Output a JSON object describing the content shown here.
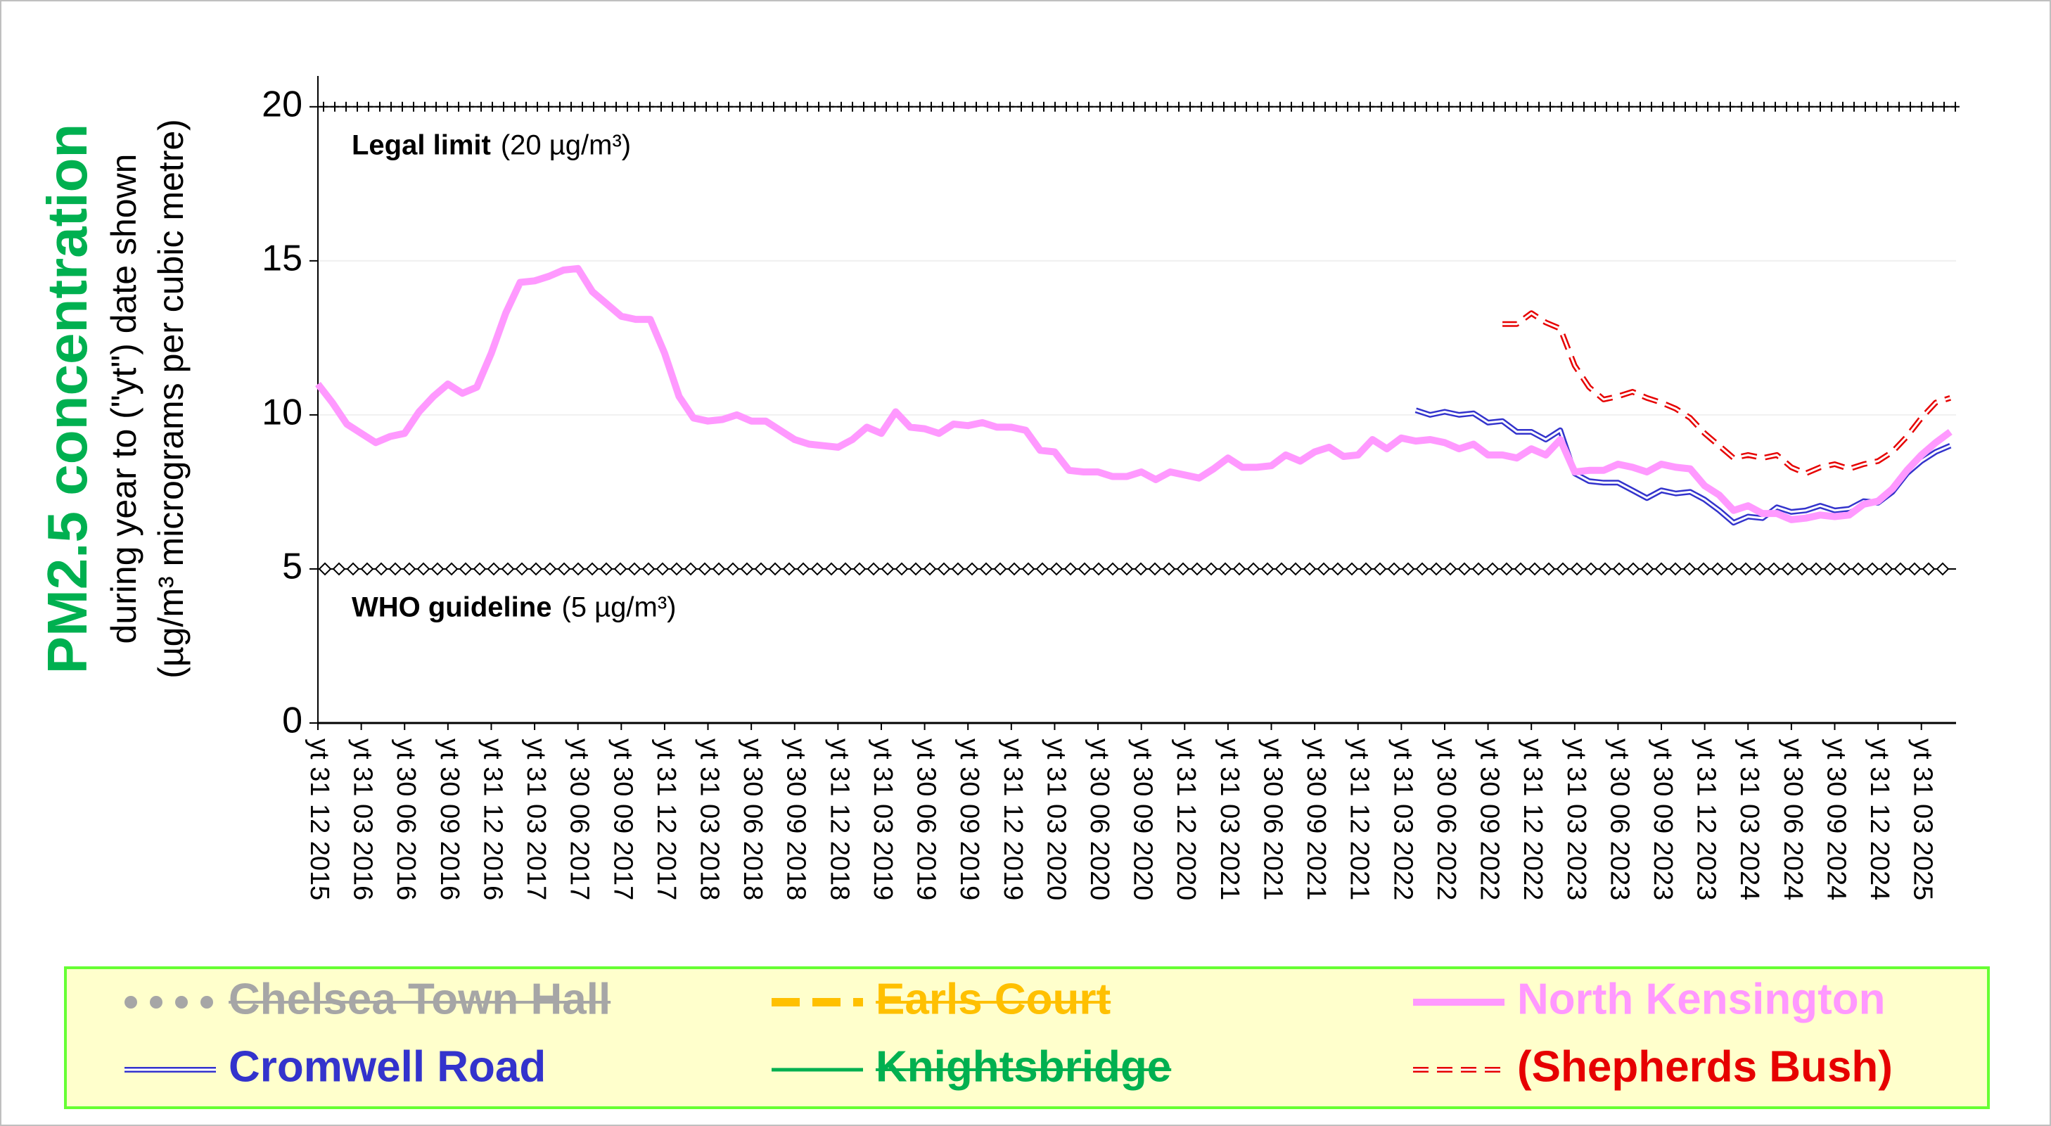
{
  "chart_data": {
    "type": "line",
    "title": "PM2.5 concentration",
    "subtitle": [
      "during year to (\"yt\") date shown",
      "(µg/m³ micrograms per cubic metre)"
    ],
    "categories": [
      "yt 31 12 2015",
      null,
      null,
      "yt 31 03 2016",
      null,
      null,
      "yt 30 06 2016",
      null,
      null,
      "yt 30 09 2016",
      null,
      null,
      "yt 31 12 2016",
      null,
      null,
      "yt 31 03 2017",
      null,
      null,
      "yt 30 06 2017",
      null,
      null,
      "yt 30 09 2017",
      null,
      null,
      "yt 31 12 2017",
      null,
      null,
      "yt 31 03 2018",
      null,
      null,
      "yt 30 06 2018",
      null,
      null,
      "yt 30 09 2018",
      null,
      null,
      "yt 31 12 2018",
      null,
      null,
      "yt 31 03 2019",
      null,
      null,
      "yt 30 06 2019",
      null,
      null,
      "yt 30 09 2019",
      null,
      null,
      "yt 31 12 2019",
      null,
      null,
      "yt 31 03 2020",
      null,
      null,
      "yt 30 06 2020",
      null,
      null,
      "yt 30 09 2020",
      null,
      null,
      "yt 31 12 2020",
      null,
      null,
      "yt 31 03 2021",
      null,
      null,
      "yt 30 06 2021",
      null,
      null,
      "yt 30 09 2021",
      null,
      null,
      "yt 31 12 2021",
      null,
      null,
      "yt 31 03 2022",
      null,
      null,
      "yt 30 06 2022",
      null,
      null,
      "yt 30 09 2022",
      null,
      null,
      "yt 31 12 2022",
      null,
      null,
      "yt 31 03 2023",
      null,
      null,
      "yt 30 06 2023",
      null,
      null,
      "yt 30 09 2023",
      null,
      null,
      "yt 31 12 2023",
      null,
      null,
      "yt 31 03 2024",
      null,
      null,
      "yt 30 06 2024",
      null,
      null,
      "yt 30 09 2024",
      null,
      null,
      "yt 31 12 2024",
      null,
      null,
      "yt 31 03 2025",
      null,
      null
    ],
    "series": [
      {
        "name": "Chelsea Town Hall",
        "color": "#a6a6a6",
        "style": "dotted",
        "struck": true,
        "values": [
          null,
          null,
          null,
          null,
          null,
          null,
          null,
          null,
          null,
          null,
          null,
          null,
          null,
          null,
          null,
          null,
          null,
          null,
          null,
          null,
          null,
          null,
          null,
          null,
          null,
          null,
          null,
          null,
          null,
          null,
          null,
          null,
          null,
          null,
          null,
          null,
          null,
          null,
          null,
          null,
          null,
          null,
          null,
          null,
          null,
          null,
          null,
          null,
          null,
          null,
          null,
          null,
          null,
          null,
          null,
          null,
          null,
          null,
          null,
          null,
          null,
          null,
          null,
          null,
          null,
          null,
          null,
          null,
          null,
          null,
          null,
          null,
          null,
          null,
          null,
          null,
          null,
          null,
          null,
          null,
          null,
          null,
          null,
          null,
          null,
          null,
          null,
          null,
          null,
          null,
          null,
          null,
          null,
          null,
          null,
          null,
          null,
          null,
          null,
          null,
          null,
          null,
          null,
          null,
          null,
          null,
          null,
          null,
          null,
          null,
          null,
          null,
          null,
          null
        ]
      },
      {
        "name": "Cromwell Road",
        "color": "#3333cc",
        "style": "double",
        "struck": false,
        "values": [
          null,
          null,
          null,
          null,
          null,
          null,
          null,
          null,
          null,
          null,
          null,
          null,
          null,
          null,
          null,
          null,
          null,
          null,
          null,
          null,
          null,
          null,
          null,
          null,
          null,
          null,
          null,
          null,
          null,
          null,
          null,
          null,
          null,
          null,
          null,
          null,
          null,
          null,
          null,
          null,
          null,
          null,
          null,
          null,
          null,
          null,
          null,
          null,
          null,
          null,
          null,
          null,
          null,
          null,
          null,
          null,
          null,
          null,
          null,
          null,
          null,
          null,
          null,
          null,
          null,
          null,
          null,
          null,
          null,
          null,
          null,
          null,
          null,
          null,
          null,
          null,
          10.15,
          10.0,
          10.1,
          10.0,
          10.05,
          9.75,
          9.8,
          9.45,
          9.45,
          9.2,
          9.5,
          8.1,
          7.85,
          7.8,
          7.8,
          7.55,
          7.3,
          7.55,
          7.45,
          7.5,
          7.25,
          6.9,
          6.5,
          6.7,
          6.65,
          7.0,
          6.85,
          6.9,
          7.05,
          6.9,
          6.95,
          7.2,
          7.15,
          7.5,
          8.1,
          8.5,
          8.8,
          9.0
        ]
      },
      {
        "name": "Earls Court",
        "color": "#ffc000",
        "style": "dashed",
        "struck": true,
        "values": [
          null,
          null,
          null,
          null,
          null,
          null,
          null,
          null,
          null,
          null,
          null,
          null,
          null,
          null,
          null,
          null,
          null,
          null,
          null,
          null,
          null,
          null,
          null,
          null,
          null,
          null,
          null,
          null,
          null,
          null,
          null,
          null,
          null,
          null,
          null,
          null,
          null,
          null,
          null,
          null,
          null,
          null,
          null,
          null,
          null,
          null,
          null,
          null,
          null,
          null,
          null,
          null,
          null,
          null,
          null,
          null,
          null,
          null,
          null,
          null,
          null,
          null,
          null,
          null,
          null,
          null,
          null,
          null,
          null,
          null,
          null,
          null,
          null,
          null,
          null,
          null,
          null,
          null,
          null,
          null,
          null,
          null,
          null,
          null,
          null,
          null,
          null,
          null,
          null,
          null,
          null,
          null,
          null,
          null,
          null,
          null,
          null,
          null,
          null,
          null,
          null,
          null,
          null,
          null,
          null,
          null,
          null,
          null,
          null,
          null,
          null,
          null,
          null,
          null
        ]
      },
      {
        "name": "Knightsbridge",
        "color": "#00b050",
        "style": "solid",
        "struck": true,
        "values": [
          null,
          null,
          null,
          null,
          null,
          null,
          null,
          null,
          null,
          null,
          null,
          null,
          null,
          null,
          null,
          null,
          null,
          null,
          null,
          null,
          null,
          null,
          null,
          null,
          null,
          null,
          null,
          null,
          null,
          null,
          null,
          null,
          null,
          null,
          null,
          null,
          null,
          null,
          null,
          null,
          null,
          null,
          null,
          null,
          null,
          null,
          null,
          null,
          null,
          null,
          null,
          null,
          null,
          null,
          null,
          null,
          null,
          null,
          null,
          null,
          null,
          null,
          null,
          null,
          null,
          null,
          null,
          null,
          null,
          null,
          null,
          null,
          null,
          null,
          null,
          null,
          null,
          null,
          null,
          null,
          null,
          null,
          null,
          null,
          null,
          null,
          null,
          null,
          null,
          null,
          null,
          null,
          null,
          null,
          null,
          null,
          null,
          null,
          null,
          null,
          null,
          null,
          null,
          null,
          null,
          null,
          null,
          null,
          null,
          null,
          null,
          null,
          null,
          null
        ]
      },
      {
        "name": "North Kensington",
        "color": "#ff99ff",
        "style": "thick",
        "struck": false,
        "values": [
          11.0,
          10.4,
          9.7,
          9.4,
          9.1,
          9.3,
          9.4,
          10.1,
          10.6,
          11.0,
          10.7,
          10.9,
          12.0,
          13.3,
          14.3,
          14.35,
          14.5,
          14.7,
          14.75,
          14.0,
          13.6,
          13.2,
          13.1,
          13.1,
          12.0,
          10.6,
          9.9,
          9.8,
          9.85,
          10.0,
          9.8,
          9.8,
          9.5,
          9.2,
          9.05,
          9.0,
          8.95,
          9.2,
          9.6,
          9.4,
          10.1,
          9.6,
          9.55,
          9.4,
          9.7,
          9.65,
          9.75,
          9.6,
          9.6,
          9.5,
          8.85,
          8.8,
          8.2,
          8.15,
          8.15,
          8.0,
          8.0,
          8.15,
          7.9,
          8.15,
          8.05,
          7.95,
          8.25,
          8.6,
          8.3,
          8.3,
          8.35,
          8.7,
          8.5,
          8.8,
          8.95,
          8.65,
          8.7,
          9.2,
          8.9,
          9.25,
          9.15,
          9.2,
          9.1,
          8.9,
          9.05,
          8.7,
          8.7,
          8.6,
          8.9,
          8.7,
          9.2,
          8.15,
          8.2,
          8.2,
          8.4,
          8.3,
          8.15,
          8.4,
          8.3,
          8.25,
          7.7,
          7.4,
          6.9,
          7.05,
          6.8,
          6.8,
          6.6,
          6.65,
          6.75,
          6.7,
          6.75,
          7.1,
          7.2,
          7.6,
          8.2,
          8.7,
          9.1,
          9.45
        ]
      },
      {
        "name": "(Shepherds Bush)",
        "color": "#e60000",
        "style": "double-dashed",
        "struck": false,
        "values": [
          null,
          null,
          null,
          null,
          null,
          null,
          null,
          null,
          null,
          null,
          null,
          null,
          null,
          null,
          null,
          null,
          null,
          null,
          null,
          null,
          null,
          null,
          null,
          null,
          null,
          null,
          null,
          null,
          null,
          null,
          null,
          null,
          null,
          null,
          null,
          null,
          null,
          null,
          null,
          null,
          null,
          null,
          null,
          null,
          null,
          null,
          null,
          null,
          null,
          null,
          null,
          null,
          null,
          null,
          null,
          null,
          null,
          null,
          null,
          null,
          null,
          null,
          null,
          null,
          null,
          null,
          null,
          null,
          null,
          null,
          null,
          null,
          null,
          null,
          null,
          null,
          null,
          null,
          null,
          null,
          null,
          null,
          12.95,
          12.95,
          13.3,
          13.0,
          12.8,
          11.6,
          10.9,
          10.5,
          10.6,
          10.75,
          10.55,
          10.4,
          10.2,
          9.9,
          9.4,
          9.0,
          8.6,
          8.7,
          8.6,
          8.7,
          8.3,
          8.1,
          8.3,
          8.4,
          8.25,
          8.4,
          8.5,
          8.8,
          9.3,
          9.9,
          10.4,
          10.55
        ]
      }
    ],
    "reference_lines": [
      {
        "value": 20,
        "label": "Legal limit",
        "note": "(20 µg/m³)",
        "marker": "plus"
      },
      {
        "value": 5,
        "label": "WHO guideline",
        "note": "(5 µg/m³)",
        "marker": "diamond"
      }
    ],
    "ylim": [
      0,
      21
    ],
    "yticks": [
      0,
      5,
      10,
      15,
      20
    ],
    "grid": true,
    "legend_position": "bottom"
  }
}
